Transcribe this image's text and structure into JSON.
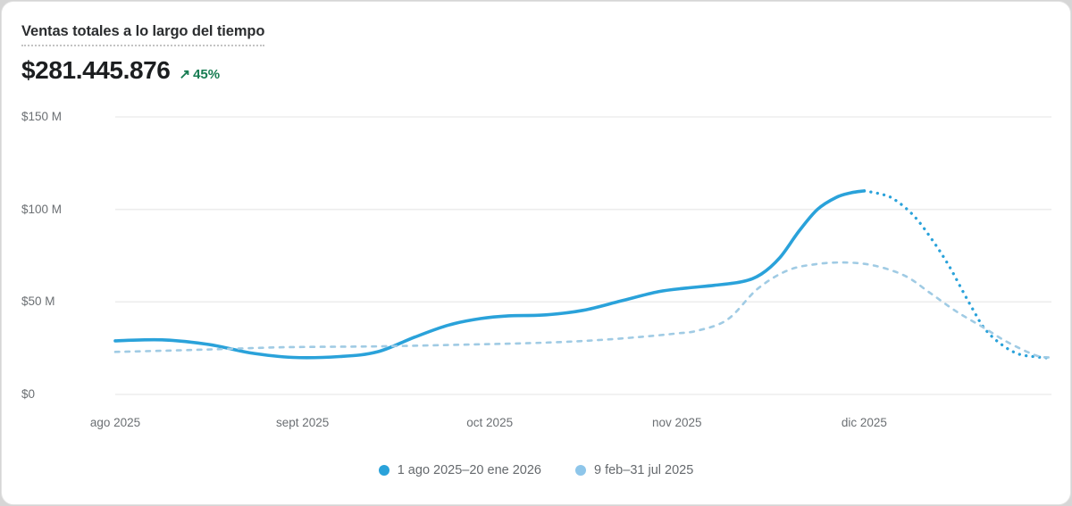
{
  "card": {
    "title": "Ventas totales a lo largo del tiempo",
    "total_value": "$281.445.876",
    "delta": {
      "direction": "up",
      "arrow": "↗",
      "value": "45%"
    }
  },
  "colors": {
    "primary_line": "#2aa2da",
    "comparison_line": "#a0cbe4",
    "comparison_legend_dot": "#8ec6ea",
    "positive_delta_green": "#177c52",
    "gridline": "#ededed",
    "axis_text": "#6b6f73",
    "title_text": "#2b2d2f",
    "value_text": "#1c1e20"
  },
  "chart_data": {
    "type": "line",
    "title": "Ventas totales a lo largo del tiempo",
    "unit": "millions USD ($M)",
    "ylim": [
      0,
      150
    ],
    "xlim_months": [
      0,
      5
    ],
    "grid": true,
    "legend_position": "bottom-center",
    "y_ticks": [
      {
        "value": 150,
        "label": "$150 M"
      },
      {
        "value": 100,
        "label": "$100 M"
      },
      {
        "value": 50,
        "label": "$50 M"
      },
      {
        "value": 0,
        "label": "$0"
      }
    ],
    "x_ticks": [
      {
        "month": 0,
        "label": "ago 2025"
      },
      {
        "month": 1,
        "label": "sept 2025"
      },
      {
        "month": 2,
        "label": "oct 2025"
      },
      {
        "month": 3,
        "label": "nov 2025"
      },
      {
        "month": 4,
        "label": "dic 2025"
      }
    ],
    "series": [
      {
        "name": "1 ago 2025–20 ene 2026 (actual)",
        "style": "solid",
        "color": "#2aa2da",
        "width": 3.6,
        "points": [
          [
            0,
            29
          ],
          [
            0.25,
            29.5
          ],
          [
            0.5,
            27
          ],
          [
            0.72,
            22.5
          ],
          [
            0.95,
            20
          ],
          [
            1.2,
            20.5
          ],
          [
            1.4,
            23
          ],
          [
            1.6,
            31
          ],
          [
            1.78,
            37.5
          ],
          [
            1.95,
            41
          ],
          [
            2.1,
            42.5
          ],
          [
            2.3,
            43
          ],
          [
            2.5,
            45.5
          ],
          [
            2.7,
            50.5
          ],
          [
            2.9,
            55.5
          ],
          [
            3.05,
            57.5
          ],
          [
            3.2,
            59
          ],
          [
            3.35,
            61
          ],
          [
            3.45,
            65
          ],
          [
            3.55,
            74
          ],
          [
            3.65,
            88
          ],
          [
            3.75,
            100
          ],
          [
            3.85,
            106.5
          ],
          [
            3.93,
            109
          ],
          [
            4.0,
            110
          ]
        ]
      },
      {
        "name": "1 ago 2025–20 ene 2026 (proyección)",
        "style": "dotted",
        "color": "#2aa2da",
        "width": 3.3,
        "points": [
          [
            4.0,
            110
          ],
          [
            4.08,
            108.5
          ],
          [
            4.16,
            105.5
          ],
          [
            4.27,
            96
          ],
          [
            4.37,
            82.5
          ],
          [
            4.45,
            70
          ],
          [
            4.52,
            57
          ],
          [
            4.58,
            46
          ],
          [
            4.64,
            36
          ],
          [
            4.72,
            28
          ],
          [
            4.82,
            22
          ],
          [
            4.93,
            20.2
          ],
          [
            5.0,
            19.7
          ]
        ]
      },
      {
        "name": "9 feb–31 jul 2025",
        "style": "dashed",
        "color": "#a0cbe4",
        "width": 2.6,
        "points": [
          [
            0,
            23
          ],
          [
            0.4,
            24
          ],
          [
            0.9,
            25.5
          ],
          [
            1.4,
            26
          ],
          [
            1.9,
            27
          ],
          [
            2.3,
            28
          ],
          [
            2.6,
            29.5
          ],
          [
            2.85,
            31.5
          ],
          [
            3.0,
            33
          ],
          [
            3.11,
            34.5
          ],
          [
            3.27,
            40.5
          ],
          [
            3.43,
            57
          ],
          [
            3.59,
            67
          ],
          [
            3.75,
            70.5
          ],
          [
            3.91,
            71.3
          ],
          [
            4.06,
            69.5
          ],
          [
            4.22,
            64
          ],
          [
            4.35,
            55
          ],
          [
            4.49,
            45
          ],
          [
            4.64,
            36
          ],
          [
            4.77,
            28
          ],
          [
            4.92,
            21
          ],
          [
            5.0,
            20
          ]
        ]
      }
    ],
    "legend": [
      {
        "label": "1 ago 2025–20 ene 2026",
        "color": "#2aa2da"
      },
      {
        "label": "9 feb–31 jul 2025",
        "color": "#8ec6ea"
      }
    ]
  }
}
